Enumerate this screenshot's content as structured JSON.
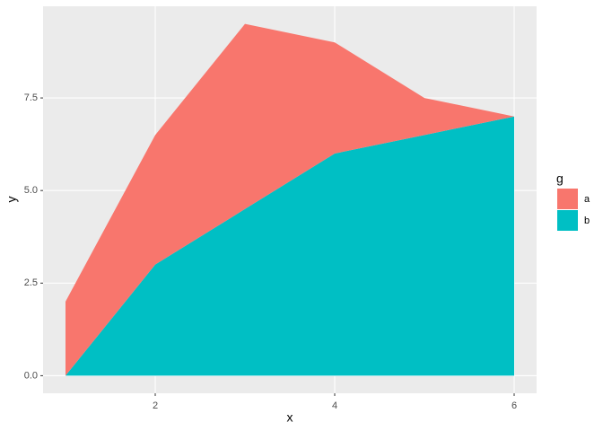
{
  "chart_data": {
    "type": "area",
    "stacked": true,
    "x": [
      1,
      2,
      3,
      4,
      5,
      6
    ],
    "series": [
      {
        "name": "a",
        "color": "#f8766d",
        "values": [
          2,
          3.5,
          5,
          3,
          1,
          0
        ]
      },
      {
        "name": "b",
        "color": "#00bfc4",
        "values": [
          0,
          3,
          4.5,
          6,
          6.5,
          7
        ]
      }
    ],
    "x_label": "x",
    "y_label": "y",
    "legend_title": "g",
    "xlim": [
      0.75,
      6.25
    ],
    "ylim": [
      -0.475,
      9.975
    ],
    "xticks": [
      2,
      4,
      6
    ],
    "yticks": [
      {
        "value": 0,
        "label": "0.0"
      },
      {
        "value": 2.5,
        "label": "2.5"
      },
      {
        "value": 5,
        "label": "5.0"
      },
      {
        "value": 7.5,
        "label": "7.5"
      }
    ],
    "grid": true,
    "legend": "right"
  }
}
